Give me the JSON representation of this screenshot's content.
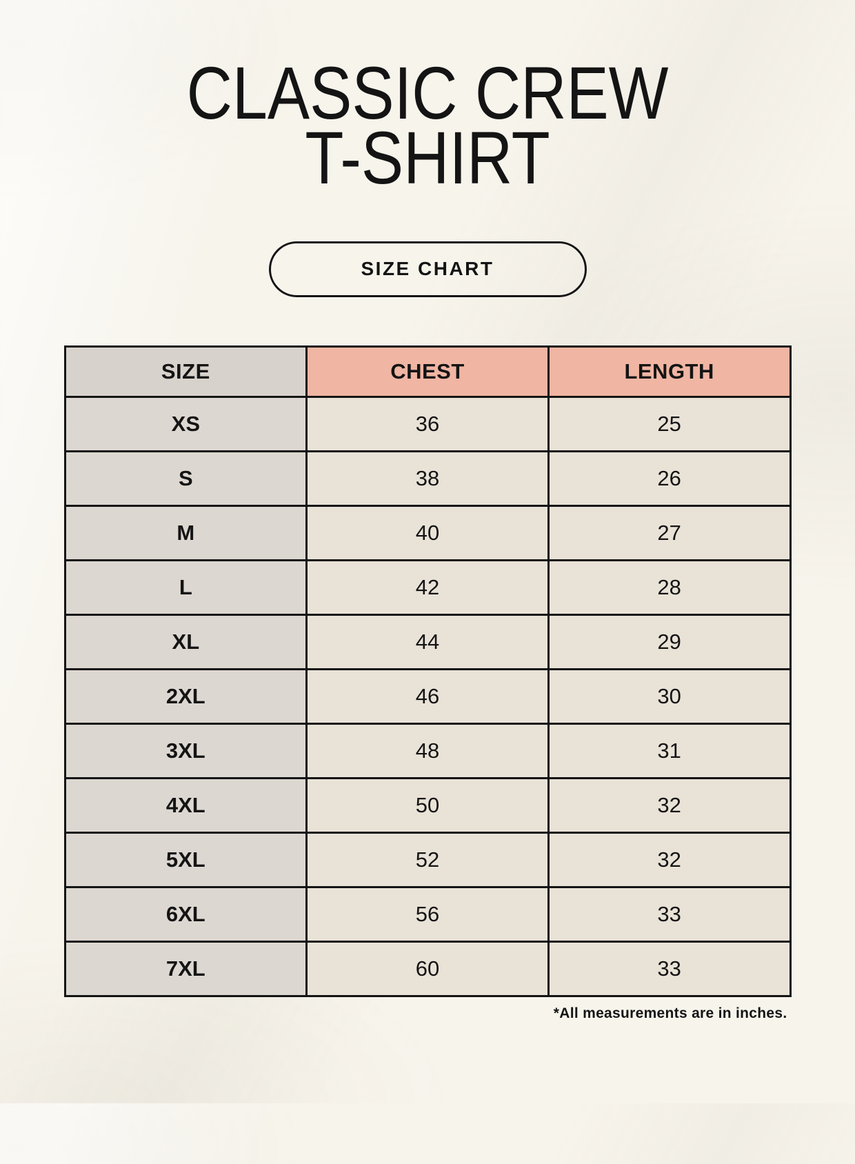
{
  "page": {
    "title_line1": "CLASSIC CREW",
    "title_line2": "T-SHIRT",
    "badge_label": "SIZE CHART",
    "footnote": "*All measurements are in inches."
  },
  "colors": {
    "background": "#f7f4ec",
    "header_accent": "#f0b5a3",
    "size_header": "#d8d2cc",
    "size_column": "#ddd7d1",
    "cell": "#e9e2d7",
    "border": "#141414",
    "text": "#141414"
  },
  "table": {
    "columns": [
      "SIZE",
      "CHEST",
      "LENGTH"
    ],
    "rows": [
      {
        "size": "XS",
        "chest": "36",
        "length": "25"
      },
      {
        "size": "S",
        "chest": "38",
        "length": "26"
      },
      {
        "size": "M",
        "chest": "40",
        "length": "27"
      },
      {
        "size": "L",
        "chest": "42",
        "length": "28"
      },
      {
        "size": "XL",
        "chest": "44",
        "length": "29"
      },
      {
        "size": "2XL",
        "chest": "46",
        "length": "30"
      },
      {
        "size": "3XL",
        "chest": "48",
        "length": "31"
      },
      {
        "size": "4XL",
        "chest": "50",
        "length": "32"
      },
      {
        "size": "5XL",
        "chest": "52",
        "length": "32"
      },
      {
        "size": "6XL",
        "chest": "56",
        "length": "33"
      },
      {
        "size": "7XL",
        "chest": "60",
        "length": "33"
      }
    ]
  }
}
